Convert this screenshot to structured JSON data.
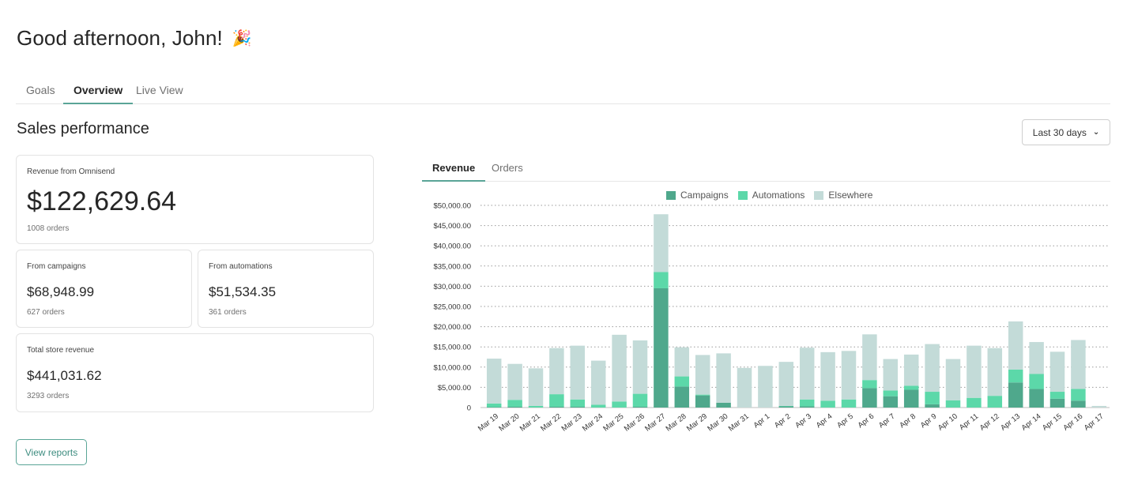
{
  "header": {
    "greeting": "Good afternoon, John!",
    "emoji": "🎉"
  },
  "tabs": [
    {
      "label": "Goals"
    },
    {
      "label": "Overview",
      "active": true
    },
    {
      "label": "Live View"
    }
  ],
  "section": {
    "title": "Sales performance",
    "range_label": "Last 30 days",
    "range_icon": "chevron-down-icon"
  },
  "cards": {
    "omnisend": {
      "label": "Revenue from Omnisend",
      "value": "$122,629.64",
      "orders": "1008 orders"
    },
    "campaigns": {
      "label": "From campaigns",
      "value": "$68,948.99",
      "orders": "627 orders"
    },
    "automations": {
      "label": "From automations",
      "value": "$51,534.35",
      "orders": "361 orders"
    },
    "total": {
      "label": "Total store revenue",
      "value": "$441,031.62",
      "orders": "3293 orders"
    }
  },
  "actions": {
    "view_reports": "View reports"
  },
  "chart_tabs": [
    {
      "label": "Revenue",
      "active": true
    },
    {
      "label": "Orders"
    }
  ],
  "colors": {
    "accent": "#5aa597",
    "campaigns": "#4fa88c",
    "automations": "#5cd8a9",
    "elsewhere": "#c3dbd8"
  },
  "chart_data": {
    "type": "bar",
    "stacked": true,
    "categories": [
      "Mar 19",
      "Mar 20",
      "Mar 21",
      "Mar 22",
      "Mar 23",
      "Mar 24",
      "Mar 25",
      "Mar 26",
      "Mar 27",
      "Mar 28",
      "Mar 29",
      "Mar 30",
      "Mar 31",
      "Apr 1",
      "Apr 2",
      "Apr 3",
      "Apr 4",
      "Apr 5",
      "Apr 6",
      "Apr 7",
      "Apr 8",
      "Apr 9",
      "Apr 10",
      "Apr 11",
      "Apr 12",
      "Apr 13",
      "Apr 14",
      "Apr 15",
      "Apr 16",
      "Apr 17"
    ],
    "series": [
      {
        "name": "Campaigns",
        "color": "#4fa88c",
        "values": [
          100,
          200,
          0,
          200,
          200,
          0,
          0,
          200,
          29500,
          5200,
          3000,
          1200,
          0,
          0,
          300,
          300,
          0,
          0,
          4800,
          2800,
          4400,
          800,
          0,
          0,
          0,
          6200,
          4600,
          2200,
          1700,
          0
        ]
      },
      {
        "name": "Automations",
        "color": "#5cd8a9",
        "values": [
          900,
          1700,
          400,
          3100,
          1800,
          700,
          1500,
          3200,
          4000,
          2500,
          200,
          0,
          0,
          0,
          100,
          1700,
          1700,
          2000,
          2000,
          1400,
          1000,
          3100,
          1800,
          2400,
          2900,
          3200,
          3700,
          1700,
          2900,
          0
        ]
      },
      {
        "name": "Elsewhere",
        "color": "#c3dbd8",
        "values": [
          11100,
          8900,
          9300,
          11400,
          13300,
          10900,
          16500,
          13200,
          14300,
          7200,
          9800,
          12200,
          9800,
          10300,
          10900,
          12800,
          12000,
          12000,
          11300,
          7800,
          7700,
          11800,
          10200,
          12900,
          11800,
          11900,
          7900,
          9900,
          12100,
          400
        ]
      }
    ],
    "y_ticks": [
      "0",
      "$5,000.00",
      "$10,000.00",
      "$15,000.00",
      "$20,000.00",
      "$25,000.00",
      "$30,000.00",
      "$35,000.00",
      "$40,000.00",
      "$45,000.00",
      "$50,000.00"
    ],
    "ylim": [
      0,
      50000
    ],
    "grid": true,
    "legend_position": "top"
  }
}
